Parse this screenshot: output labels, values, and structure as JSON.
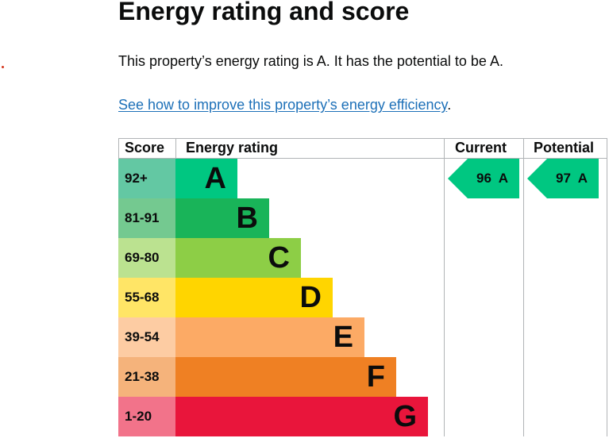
{
  "page": {
    "title": "Energy rating and score",
    "summary": "This property’s energy rating is A. It has the potential to be A.",
    "link_text": "See how to improve this property’s energy efficiency",
    "link_suffix": "."
  },
  "table": {
    "headers": {
      "score": "Score",
      "energy_rating": "Energy rating",
      "current": "Current",
      "potential": "Potential"
    },
    "bands": [
      {
        "score": "92+",
        "letter": "A",
        "bar_color": "#00c781",
        "score_color": "#63c8a3"
      },
      {
        "score": "81-91",
        "letter": "B",
        "bar_color": "#19b459",
        "score_color": "#74c990"
      },
      {
        "score": "69-80",
        "letter": "C",
        "bar_color": "#8dce46",
        "score_color": "#bbe290"
      },
      {
        "score": "55-68",
        "letter": "D",
        "bar_color": "#ffd500",
        "score_color": "#ffe566"
      },
      {
        "score": "39-54",
        "letter": "E",
        "bar_color": "#fcaa65",
        "score_color": "#fdcca3"
      },
      {
        "score": "21-38",
        "letter": "F",
        "bar_color": "#ef8023",
        "score_color": "#f5b37b"
      },
      {
        "score": "1-20",
        "letter": "G",
        "bar_color": "#e9153b",
        "score_color": "#f2738a"
      }
    ],
    "current": {
      "label": "96  A",
      "color": "#00c781"
    },
    "potential": {
      "label": "97  A",
      "color": "#00c781"
    }
  }
}
